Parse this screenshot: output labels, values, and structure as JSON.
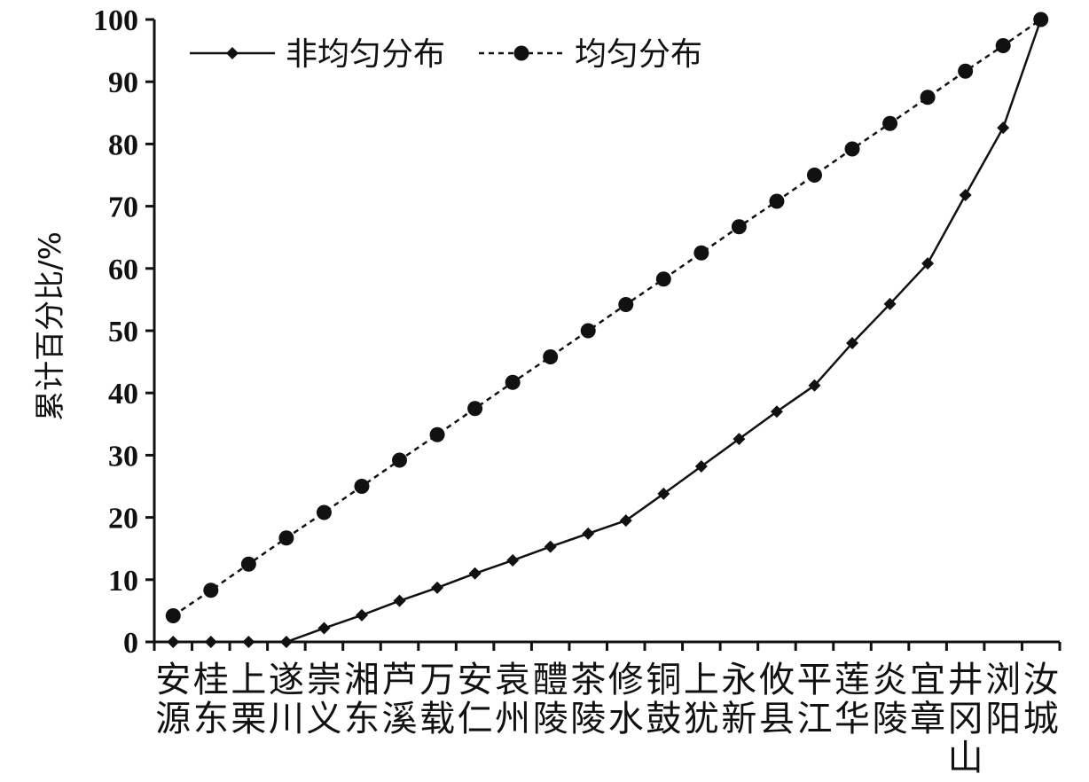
{
  "chart_data": {
    "type": "line",
    "ylabel": "累计百分比/%",
    "ylim": [
      0,
      100
    ],
    "yticks": [
      0,
      10,
      20,
      30,
      40,
      50,
      60,
      70,
      80,
      90,
      100
    ],
    "grid": false,
    "legend_position": "top-left",
    "categories": [
      [
        "安",
        "源"
      ],
      [
        "桂",
        "东"
      ],
      [
        "上",
        "栗"
      ],
      [
        "遂",
        "川"
      ],
      [
        "崇",
        "义"
      ],
      [
        "湘",
        "东"
      ],
      [
        "芦",
        "溪"
      ],
      [
        "万",
        "载"
      ],
      [
        "安",
        "仁"
      ],
      [
        "袁",
        "州"
      ],
      [
        "醴",
        "陵"
      ],
      [
        "茶",
        "陵"
      ],
      [
        "修",
        "水"
      ],
      [
        "铜",
        "鼓"
      ],
      [
        "上",
        "犹"
      ],
      [
        "永",
        "新"
      ],
      [
        "攸",
        "县"
      ],
      [
        "平",
        "江"
      ],
      [
        "莲",
        "华"
      ],
      [
        "炎",
        "陵"
      ],
      [
        "宜",
        "章"
      ],
      [
        "井",
        "冈",
        "山"
      ],
      [
        "浏",
        "阳"
      ],
      [
        "汝",
        "城"
      ]
    ],
    "series": [
      {
        "name": "非均匀分布",
        "marker": "diamond",
        "line_style": "solid",
        "values": [
          0,
          0,
          0,
          0,
          2.2,
          4.3,
          6.6,
          8.7,
          11.0,
          13.1,
          15.3,
          17.4,
          19.5,
          23.8,
          28.2,
          32.6,
          37.0,
          41.2,
          48.0,
          54.3,
          60.8,
          71.8,
          82.6,
          100
        ]
      },
      {
        "name": "均匀分布",
        "marker": "circle",
        "line_style": "dashed",
        "values": [
          4.2,
          8.3,
          12.5,
          16.7,
          20.8,
          25.0,
          29.2,
          33.3,
          37.5,
          41.7,
          45.8,
          50.0,
          54.2,
          58.3,
          62.5,
          66.7,
          70.8,
          75.0,
          79.2,
          83.3,
          87.5,
          91.7,
          95.8,
          100
        ]
      }
    ]
  }
}
